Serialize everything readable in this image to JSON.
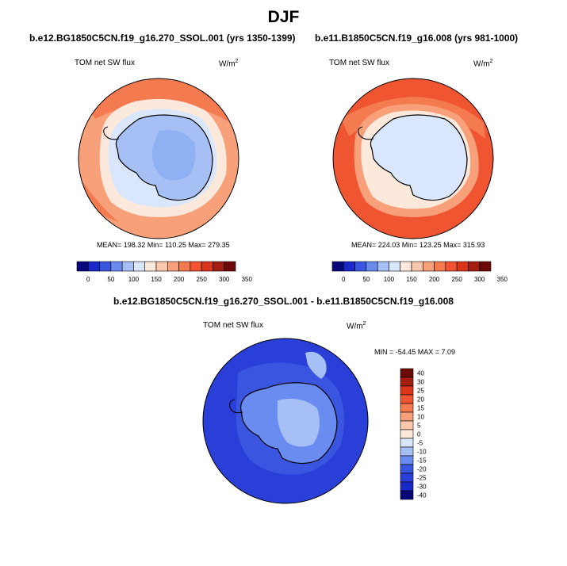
{
  "title": "DJF",
  "panels": [
    {
      "case": "b.e12.BG1850C5CN.f19_g16.270_SSOL.001 (yrs 1350-1399)",
      "variable": "TOM net SW flux",
      "units_base": "W/m",
      "units_sup": "2",
      "stats": "MEAN= 198.32  Min= 110.25  Max= 279.35"
    },
    {
      "case": "b.e11.B1850C5CN.f19_g16.008 (yrs 981-1000)",
      "variable": "TOM net SW flux",
      "units_base": "W/m",
      "units_sup": "2",
      "stats": "MEAN= 224.03  Min= 123.25  Max= 315.93"
    },
    {
      "case": "b.e12.BG1850C5CN.f19_g16.270_SSOL.001 - b.e11.B1850C5CN.f19_g16.008",
      "variable": "TOM net SW flux",
      "units_base": "W/m",
      "units_sup": "2",
      "stats": "MIN = -54.45 MAX =   7.09"
    }
  ],
  "colorbar_abs": {
    "ticks": [
      "0",
      "50",
      "100",
      "150",
      "200",
      "250",
      "300",
      "350"
    ],
    "colors": [
      "#08087a",
      "#1b28c8",
      "#3a55e0",
      "#6a8cf0",
      "#a6c0f6",
      "#d9e6fb",
      "#fde9dc",
      "#fbc7ac",
      "#f8a07a",
      "#f47a50",
      "#ef5530",
      "#d9361c",
      "#a41e10",
      "#6b0a06"
    ]
  },
  "colorbar_diff": {
    "ticks": [
      "40",
      "30",
      "25",
      "20",
      "15",
      "10",
      "5",
      "0",
      "-5",
      "-10",
      "-15",
      "-20",
      "-25",
      "-30",
      "-40"
    ],
    "colors": [
      "#6b0a06",
      "#a41e10",
      "#d9361c",
      "#ef5530",
      "#f47a50",
      "#f8a07a",
      "#fbc7ac",
      "#fde9dc",
      "#d9e6fb",
      "#a6c0f6",
      "#6a8cf0",
      "#3a55e0",
      "#2a3fd8",
      "#1b28c8",
      "#08087a"
    ]
  },
  "map_colors": {
    "ocean_low": "#f8a07a",
    "ocean_mid": "#f47a50",
    "ocean_high": "#ef5530",
    "ice_edge": "#fde9dc",
    "sea_ice": "#d9e6fb",
    "continent": "#a6c0f6",
    "continent_core": "#8fb0f2",
    "diff_ocean": "#2a3fd8",
    "diff_mid": "#3a55e0",
    "diff_light": "#6a8cf0",
    "diff_pale": "#a6c0f6"
  }
}
